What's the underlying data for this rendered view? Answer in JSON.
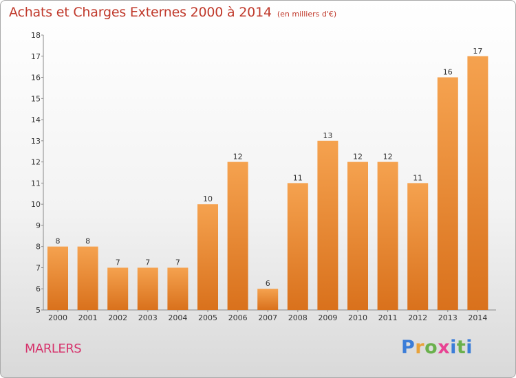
{
  "title": "Achats et Charges Externes 2000 à 2014",
  "unit_label": "(en milliers d'€)",
  "town": "MARLERS",
  "logo": {
    "letters": [
      "P",
      "r",
      "o",
      "x",
      "i",
      "t",
      "i"
    ],
    "colors": [
      "#3b7dd8",
      "#e8a23a",
      "#6ab04c",
      "#e84393",
      "#3b7dd8",
      "#6ab04c",
      "#3b7dd8"
    ]
  },
  "colors": {
    "bar_light": "#f5a24f",
    "bar_dark": "#d9711c",
    "title": "#c0392b",
    "town": "#d6336c"
  },
  "chart_data": {
    "type": "bar",
    "title": "Achats et Charges Externes 2000 à 2014",
    "categories": [
      "2000",
      "2001",
      "2002",
      "2003",
      "2004",
      "2005",
      "2006",
      "2007",
      "2008",
      "2009",
      "2010",
      "2011",
      "2012",
      "2013",
      "2014"
    ],
    "values": [
      8,
      8,
      7,
      7,
      7,
      10,
      12,
      6,
      11,
      13,
      12,
      12,
      11,
      16,
      17
    ],
    "xlabel": "",
    "ylabel": "",
    "ylim": [
      5,
      18
    ],
    "yticks": [
      5,
      6,
      7,
      8,
      9,
      10,
      11,
      12,
      13,
      14,
      15,
      16,
      17,
      18
    ],
    "grid": false
  }
}
